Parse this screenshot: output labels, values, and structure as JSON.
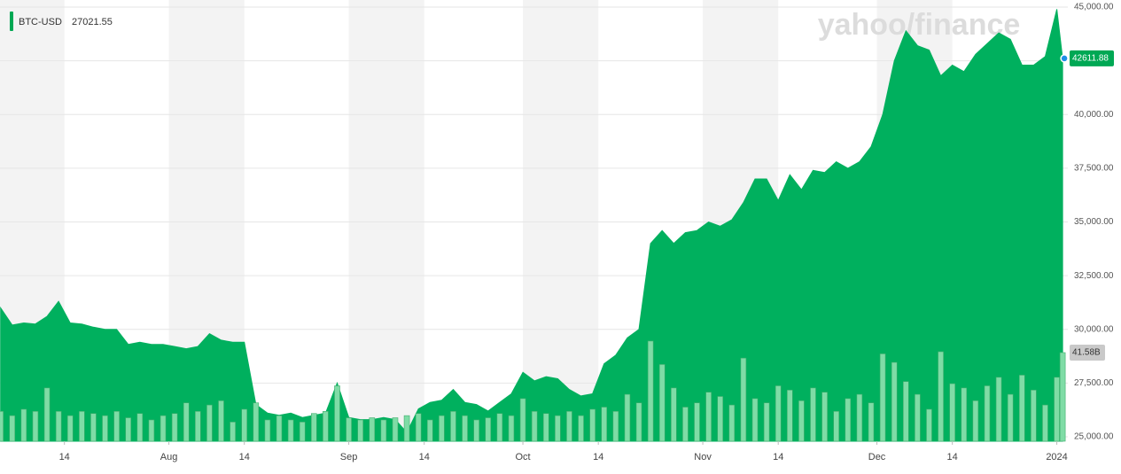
{
  "chart_data": {
    "type": "area",
    "watermark": "yahoo/finance",
    "legend_value": 27021.55,
    "x": [
      2,
      4,
      6,
      8,
      10,
      12,
      14,
      16,
      18,
      20,
      22,
      24,
      26,
      28,
      30,
      32,
      34,
      36,
      38,
      40,
      42,
      44,
      46,
      48,
      50,
      52,
      54,
      56,
      58,
      60,
      62,
      64,
      66,
      68,
      70,
      72,
      74,
      76,
      78,
      80,
      82,
      84,
      86,
      88,
      90,
      92,
      94,
      96,
      98,
      100,
      102,
      104,
      106,
      108,
      110,
      112,
      114,
      116,
      118,
      120,
      122,
      124,
      126,
      128,
      130,
      132,
      134,
      136,
      138,
      140,
      142,
      144,
      146,
      148,
      150,
      152,
      154,
      156,
      158,
      160,
      162,
      164,
      166,
      168,
      170,
      172,
      174,
      176,
      178,
      180,
      182,
      184,
      185
    ],
    "series": [
      {
        "name": "BTC-USD",
        "color": "#00b05e",
        "values": [
          31000,
          30200,
          30300,
          30250,
          30600,
          31300,
          30300,
          30250,
          30100,
          30000,
          30000,
          29300,
          29400,
          29300,
          29300,
          29200,
          29100,
          29200,
          29800,
          29500,
          29400,
          29400,
          26500,
          26100,
          26000,
          26100,
          25900,
          26000,
          26100,
          27500,
          25900,
          25800,
          25800,
          25900,
          25800,
          25200,
          26300,
          26600,
          26700,
          27200,
          26600,
          26500,
          26200,
          26600,
          27000,
          28000,
          27600,
          27800,
          27700,
          27200,
          26900,
          27000,
          28400,
          28800,
          29600,
          30000,
          34000,
          34600,
          34000,
          34500,
          34600,
          35000,
          34800,
          35100,
          35900,
          37000,
          37000,
          36000,
          37200,
          36500,
          37400,
          37300,
          37800,
          37500,
          37800,
          38500,
          40000,
          42500,
          43900,
          43200,
          43000,
          41800,
          42300,
          42000,
          42800,
          43300,
          43800,
          43500,
          42300,
          42300,
          42700,
          44900,
          42611.88
        ]
      }
    ],
    "volume": {
      "color": "#7fdca6",
      "values": [
        14,
        12,
        15,
        14,
        25,
        14,
        12,
        14,
        13,
        12,
        14,
        11,
        13,
        10,
        12,
        13,
        18,
        14,
        17,
        19,
        9,
        15,
        18,
        10,
        12,
        10,
        9,
        13,
        14,
        26,
        11,
        10,
        11,
        10,
        11,
        12,
        13,
        10,
        12,
        14,
        12,
        10,
        11,
        13,
        12,
        20,
        14,
        13,
        12,
        14,
        12,
        15,
        16,
        14,
        22,
        18,
        47,
        36,
        25,
        16,
        18,
        23,
        21,
        17,
        39,
        20,
        18,
        26,
        24,
        19,
        25,
        23,
        14,
        20,
        22,
        18,
        41,
        37,
        28,
        22,
        15,
        42,
        27,
        25,
        19,
        26,
        30,
        22,
        31,
        24,
        17,
        30,
        41.58
      ]
    },
    "xlim": [
      1.9,
      185.9
    ],
    "xticks": [
      {
        "value": 13,
        "label": "14"
      },
      {
        "value": 31,
        "label": "Aug"
      },
      {
        "value": 44,
        "label": "14"
      },
      {
        "value": 62,
        "label": "Sep"
      },
      {
        "value": 75,
        "label": "14"
      },
      {
        "value": 92,
        "label": "Oct"
      },
      {
        "value": 105,
        "label": "14"
      },
      {
        "value": 123,
        "label": "Nov"
      },
      {
        "value": 136,
        "label": "14"
      },
      {
        "value": 153,
        "label": "Dec"
      },
      {
        "value": 166,
        "label": "14"
      },
      {
        "value": 184,
        "label": "2024"
      }
    ],
    "ylim": [
      25000,
      45000
    ],
    "yticks": [
      {
        "value": 25000,
        "label": "25,000.00"
      },
      {
        "value": 27500,
        "label": "27,500.00"
      },
      {
        "value": 30000,
        "label": "30,000.00"
      },
      {
        "value": 32500,
        "label": "32,500.00"
      },
      {
        "value": 35000,
        "label": "35,000.00"
      },
      {
        "value": 37500,
        "label": "37,500.00"
      },
      {
        "value": 40000,
        "label": "40,000.00"
      },
      {
        "value": 42500,
        "label": "42,500.00"
      },
      {
        "value": 45000,
        "label": "45,000.00"
      }
    ],
    "y2lim": [
      0,
      207
    ],
    "y2ticks": [
      {
        "value": 41.58,
        "label": "41.58B"
      }
    ],
    "grid": true
  }
}
